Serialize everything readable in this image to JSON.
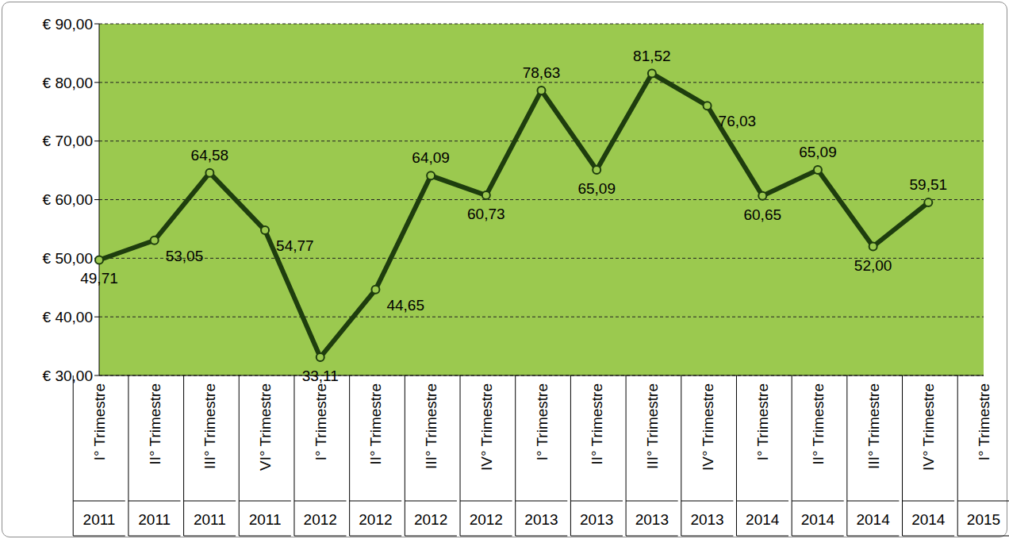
{
  "chart_data": {
    "type": "line",
    "categories": [
      "I° Trimestre",
      "II° Trimestre",
      "III° Trimestre",
      "VI° Trimestre",
      "I° Trimestre",
      "II° Trimestre",
      "III° Trimestre",
      "IV° Trimestre",
      "I° Trimestre",
      "II° Trimestre",
      "III° Trimestre",
      "IV° Trimestre",
      "I° Trimestre",
      "II° Trimestre",
      "III° Trimestre",
      "IV° Trimestre",
      "I° Trimestre"
    ],
    "years": [
      "2011",
      "2011",
      "2011",
      "2011",
      "2012",
      "2012",
      "2012",
      "2012",
      "2013",
      "2013",
      "2013",
      "2013",
      "2014",
      "2014",
      "2014",
      "2014",
      "2015"
    ],
    "values": [
      49.71,
      53.05,
      64.58,
      54.77,
      33.11,
      44.65,
      64.09,
      60.73,
      78.63,
      65.09,
      81.52,
      76.03,
      60.65,
      65.09,
      52.0,
      59.51,
      null
    ],
    "value_labels": [
      "49,71",
      "53,05",
      "64,58",
      "54,77",
      "33,11",
      "44,65",
      "64,09",
      "60,73",
      "78,63",
      "65,09",
      "81,52",
      "76,03",
      "60,65",
      "65,09",
      "52,00",
      "59,51",
      null
    ],
    "ylim": [
      30,
      90
    ],
    "yticks": [
      {
        "value": 30,
        "label": "€ 30,00"
      },
      {
        "value": 40,
        "label": "€ 40,00"
      },
      {
        "value": 50,
        "label": "€ 50,00"
      },
      {
        "value": 60,
        "label": "€ 60,00"
      },
      {
        "value": 70,
        "label": "€ 70,00"
      },
      {
        "value": 80,
        "label": "€ 80,00"
      },
      {
        "value": 90,
        "label": "€ 90,00"
      }
    ],
    "grid": true,
    "data_labels": true,
    "marker": "circle",
    "color": "#1e3d0e"
  }
}
